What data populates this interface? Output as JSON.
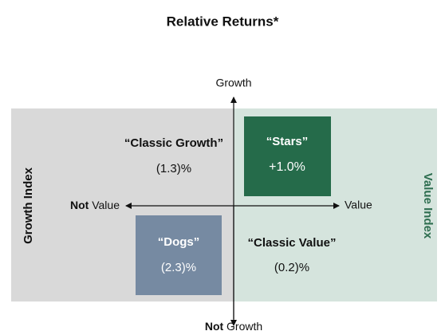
{
  "title": "Relative Returns*",
  "axes": {
    "top": "Growth",
    "bottom": {
      "prefix": "Not",
      "label": "Growth"
    },
    "left": {
      "prefix": "Not",
      "label": "Value"
    },
    "right": "Value"
  },
  "side_labels": {
    "left": "Growth Index",
    "right": "Value Index"
  },
  "quadrants": {
    "stars": {
      "name": "“Stars”",
      "value": "+1.0%"
    },
    "classic_growth": {
      "name": "“Classic Growth”",
      "value": "(1.3)%"
    },
    "dogs": {
      "name": "“Dogs”",
      "value": "(2.3)%"
    },
    "classic_value": {
      "name": "“Classic Value”",
      "value": "(0.2)%"
    }
  }
}
